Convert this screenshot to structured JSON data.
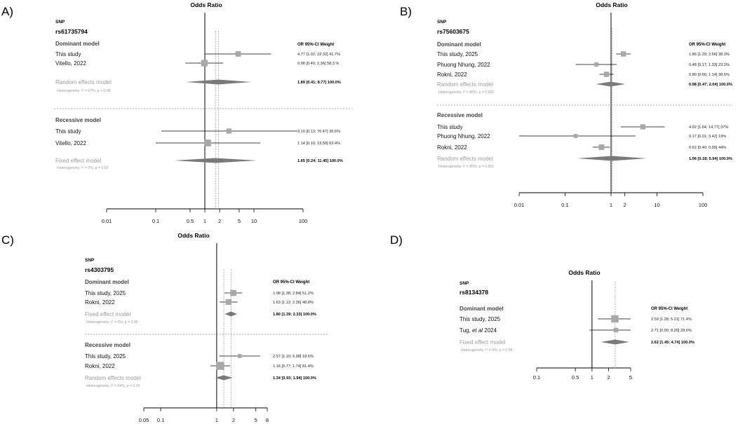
{
  "colors": {
    "square": "#a8a8a8",
    "diamond": "#7a7a7a",
    "line": "#000000",
    "dashed": "#9a9a9a",
    "pooled_text": "#9a9a9a"
  },
  "chart_data": [
    {
      "type": "forest",
      "panel_label": "A)",
      "title": "Odds Ratio",
      "snp_header": "SNP",
      "snp": "rs61735794",
      "scale": "log",
      "x_range": [
        0.01,
        100
      ],
      "ticks": [
        {
          "v": 0.01,
          "l": "0.01"
        },
        {
          "v": 0.1,
          "l": "0.1"
        },
        {
          "v": 0.5,
          "l": "0.5"
        },
        {
          "v": 1,
          "l": "1"
        },
        {
          "v": 2,
          "l": "2"
        },
        {
          "v": 5,
          "l": "5"
        },
        {
          "v": 10,
          "l": "10"
        },
        {
          "v": 100,
          "l": "100"
        }
      ],
      "col_header": "OR    95%-CI    Weight",
      "groups": [
        {
          "name": "Dominant model",
          "studies": [
            {
              "label": "This study",
              "or": 4.77,
              "lo": 1.02,
              "hi": 22.32,
              "weight": 41.7,
              "text": "4.77 [1.02; 22.32] 41.7%"
            },
            {
              "label": "Vitello, 2022",
              "or": 0.98,
              "lo": 0.4,
              "hi": 2.36,
              "weight": 58.3,
              "text": "0.98 [0.40; 2.36] 58.3 %"
            }
          ],
          "pooled": {
            "label": "Random effects model",
            "or": 1.89,
            "lo": 0.41,
            "hi": 8.77,
            "text": "1.89 [0.41; 8.77] 100.0%"
          },
          "heterogeneity": "Heterogeneity: I² = 67%; p = 0.08"
        },
        {
          "name": "Recessive model",
          "studies": [
            {
              "label": "This study",
              "or": 3.1,
              "lo": 0.13,
              "hi": 76.47,
              "weight": 36.6,
              "text": "3.10 [0.13; 76.47] 36.6%"
            },
            {
              "label": "Vitello, 2022",
              "or": 1.14,
              "lo": 0.1,
              "hi": 13.5,
              "weight": 63.4,
              "text": "1.14 [0.10; 13.50] 63.4%"
            }
          ],
          "pooled": {
            "label": "Fixed effect model",
            "or": 1.65,
            "lo": 0.24,
            "hi": 11.45,
            "text": "1.65 [0.24; 11.45] 100.0%"
          },
          "heterogeneity": "Heterogeneity: I² = 0%; p = 0.63"
        }
      ]
    },
    {
      "type": "forest",
      "panel_label": "B)",
      "title": "Odds Ratio",
      "snp_header": "SNP",
      "snp": "rs75603675",
      "scale": "log",
      "x_range": [
        0.01,
        100
      ],
      "ticks": [
        {
          "v": 0.01,
          "l": "0.01"
        },
        {
          "v": 0.1,
          "l": "0.1"
        },
        {
          "v": 1,
          "l": "1"
        },
        {
          "v": 2,
          "l": "2"
        },
        {
          "v": 10,
          "l": "10"
        },
        {
          "v": 100,
          "l": "100"
        }
      ],
      "col_header": "OR    95%-CI    Weight",
      "groups": [
        {
          "name": "Dominant model",
          "studies": [
            {
              "label": "This study, 2025",
              "or": 1.86,
              "lo": 1.29,
              "hi": 2.66,
              "weight": 38.3,
              "text": "1.86 [1.29; 2.66] 38.3%"
            },
            {
              "label": "Phuong Nhung, 2022",
              "or": 0.48,
              "lo": 0.17,
              "hi": 1.33,
              "weight": 23.2,
              "text": "0.48 [0.17; 1.33] 23.2%"
            },
            {
              "label": "Rokni, 2022",
              "or": 0.8,
              "lo": 0.56,
              "hi": 1.14,
              "weight": 38.5,
              "text": "0.80 [0.56; 1.14] 38.5%"
            }
          ],
          "pooled": {
            "label": "Random effects model",
            "or": 0.98,
            "lo": 0.47,
            "hi": 2.04,
            "text": "0.98 [0.47; 2.04] 100.0%"
          },
          "heterogeneity": "Heterogeneity: I² = 86%; p = 0.002"
        },
        {
          "name": "Recessive model",
          "studies": [
            {
              "label": "This study",
              "or": 4.92,
              "lo": 1.64,
              "hi": 14.77,
              "weight": 37,
              "text": "4.92 [1.64; 14.77] 37%"
            },
            {
              "label": "Phuong Nhung, 2022",
              "or": 0.17,
              "lo": 0.01,
              "hi": 3.42,
              "weight": 19,
              "text": "0.17 [0.01; 3.42] 19%"
            },
            {
              "label": "Rokni, 2022",
              "or": 0.62,
              "lo": 0.4,
              "hi": 0.95,
              "weight": 44,
              "text": "0.62 [0.40; 0.95] 44%"
            }
          ],
          "pooled": {
            "label": "Random effects model",
            "or": 1.06,
            "lo": 0.18,
            "hi": 5.94,
            "text": "1.06 [0.18; 5.94] 100.0%"
          },
          "heterogeneity": "Heterogeneity: I² = 85%; p = 0.001"
        }
      ]
    },
    {
      "type": "forest",
      "panel_label": "C)",
      "title": "Odds Ratio",
      "snp_header": "SNP",
      "snp": "rs4303795",
      "scale": "log",
      "x_range": [
        0.05,
        8
      ],
      "ticks": [
        {
          "v": 0.05,
          "l": "0.05"
        },
        {
          "v": 0.1,
          "l": "0.1"
        },
        {
          "v": 1,
          "l": "1"
        },
        {
          "v": 2,
          "l": "2"
        },
        {
          "v": 5,
          "l": "5"
        },
        {
          "v": 8,
          "l": "8"
        }
      ],
      "col_header": "OR    95%-CI Weight",
      "groups": [
        {
          "name": "Dominant model",
          "studies": [
            {
              "label": "This study, 2025",
              "or": 1.98,
              "lo": 1.38,
              "hi": 2.84,
              "weight": 51.2,
              "text": "1.98 [1.38; 2.84] 51.2%"
            },
            {
              "label": "Rokni, 2022",
              "or": 1.63,
              "lo": 1.13,
              "hi": 2.36,
              "weight": 48.8,
              "text": "1.63 [1.13; 2.36] 48.8%"
            }
          ],
          "pooled": {
            "label": "Fixed effect model",
            "or": 1.8,
            "lo": 1.39,
            "hi": 2.33,
            "text": "1.80 [1.39; 2.33] 100.0%"
          },
          "heterogeneity": "Heterogeneity: I² = 0%; p = 0.46"
        },
        {
          "name": "Recessive model",
          "studies": [
            {
              "label": "This study,  2025",
              "or": 2.57,
              "lo": 1.1,
              "hi": 5.98,
              "weight": 18.6,
              "text": "2.57 [1.10; 5.98] 18.6%"
            },
            {
              "label": "Rokni, 2022",
              "or": 1.16,
              "lo": 0.77,
              "hi": 1.74,
              "weight": 81.4,
              "text": "1.16 [0.77; 1.74] 81.4%"
            }
          ],
          "pooled": {
            "label": "Random effects model",
            "or": 1.34,
            "lo": 0.93,
            "hi": 1.94,
            "text": "1.34 [0.93; 1.94] 100.0%"
          },
          "heterogeneity": "Heterogeneity: I² = 84%; p = 0.10"
        }
      ]
    },
    {
      "type": "forest",
      "panel_label": "D)",
      "title": "Odds Ratio",
      "snp_header": "SNP",
      "snp": "rs8134378",
      "scale": "log",
      "x_range": [
        0.1,
        5
      ],
      "ticks": [
        {
          "v": 0.1,
          "l": "0.1"
        },
        {
          "v": 0.5,
          "l": "0.5"
        },
        {
          "v": 1,
          "l": "1"
        },
        {
          "v": 2,
          "l": "2"
        },
        {
          "v": 5,
          "l": "5"
        }
      ],
      "col_header": "OR    95%-CI Weight",
      "groups": [
        {
          "name": "Dominant model",
          "studies": [
            {
              "label": "This study, 2025",
              "or": 2.59,
              "lo": 1.28,
              "hi": 5.21,
              "weight": 71.4,
              "text": "2.59 [1.28; 5.21] 71.4%"
            },
            {
              "label": "Tug, et al 2024",
              "label_parts": [
                "Tug, ",
                "et al",
                " 2024"
              ],
              "or": 2.71,
              "lo": 0.9,
              "hi": 8.2,
              "weight": 28.6,
              "text": "2.71 [0.90; 8.20] 28.6%"
            }
          ],
          "pooled": {
            "label": "Fixed effect model",
            "or": 2.62,
            "lo": 1.45,
            "hi": 4.74,
            "text": "2.62 [1.45; 4.74] 100.0%"
          },
          "heterogeneity": "Heterogeneity: I² = 0%; p = 0.94"
        }
      ]
    }
  ]
}
